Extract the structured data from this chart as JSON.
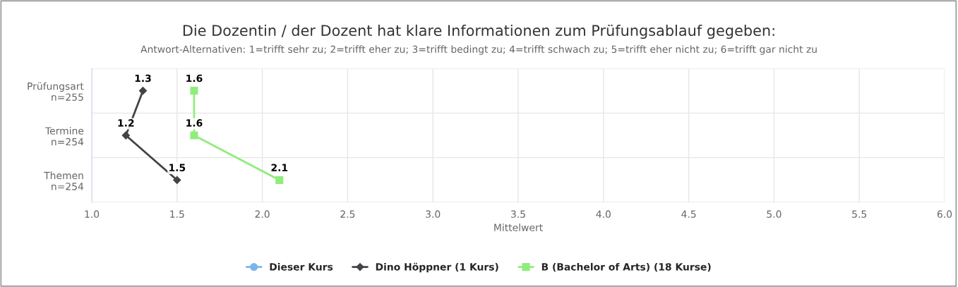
{
  "chart_data": {
    "type": "line",
    "orientation": "horizontal",
    "title": "Die Dozentin / der Dozent hat klare Informationen zum Prüfungsablauf gegeben:",
    "subtitle": "Antwort-Alternativen: 1=trifft sehr zu; 2=trifft eher zu; 3=trifft bedingt zu; 4=trifft schwach zu; 5=trifft eher nicht zu; 6=trifft gar nicht zu",
    "xlabel": "Mittelwert",
    "categories": [
      "Prüfungsart\nn=255",
      "Termine\nn=254",
      "Themen\nn=254"
    ],
    "series": [
      {
        "name": "Dieser Kurs",
        "color": "#7cb5ec",
        "marker": "circle",
        "values": [
          null,
          null,
          null
        ]
      },
      {
        "name": "Dino Höppner (1 Kurs)",
        "color": "#434348",
        "marker": "diamond",
        "values": [
          1.3,
          1.2,
          1.5
        ]
      },
      {
        "name": "B (Bachelor of Arts) (18 Kurse)",
        "color": "#90ed7d",
        "marker": "square",
        "values": [
          1.6,
          1.6,
          2.1
        ]
      }
    ],
    "xlim": [
      1.0,
      6.0
    ],
    "xticks": [
      {
        "value": 1.0,
        "label": "1.0"
      },
      {
        "value": 1.5,
        "label": "1.5"
      },
      {
        "value": 2.0,
        "label": "2.0"
      },
      {
        "value": 2.5,
        "label": "2.5"
      },
      {
        "value": 3.0,
        "label": "3.0"
      },
      {
        "value": 3.5,
        "label": "3.5"
      },
      {
        "value": 4.0,
        "label": "4.0"
      },
      {
        "value": 4.5,
        "label": "4.5"
      },
      {
        "value": 5.0,
        "label": "5.0"
      },
      {
        "value": 5.5,
        "label": "5.5"
      },
      {
        "value": 6.0,
        "label": "6.0"
      }
    ],
    "data_labels": true,
    "grid": true,
    "legend": "bottom",
    "line_style": "solid"
  }
}
